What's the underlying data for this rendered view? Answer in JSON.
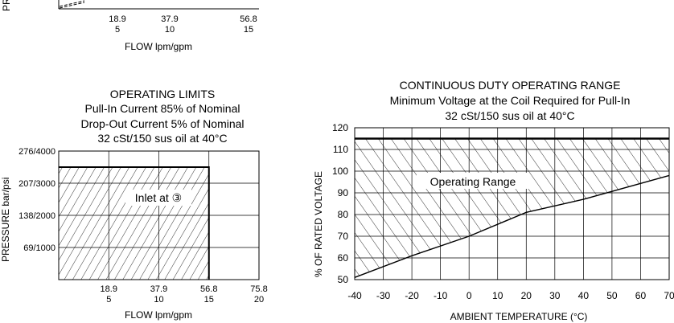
{
  "chart_data": [
    {
      "type": "line",
      "partial": true,
      "xlabel": "FLOW lpm/gpm",
      "ylabel": "PR",
      "x_ticks": [
        {
          "lpm": "18.9",
          "gpm": "5"
        },
        {
          "lpm": "37.9",
          "gpm": "10"
        },
        {
          "lpm": "56.8",
          "gpm": "15"
        }
      ]
    },
    {
      "type": "area",
      "title": "OPERATING LIMITS",
      "subtitle": [
        "Pull-In Current 85% of Nominal",
        "Drop-Out Current 5% of Nominal",
        "32 cSt/150 sus oil at 40°C"
      ],
      "xlabel": "FLOW lpm/gpm",
      "ylabel": "PRESSURE bar/psi",
      "xlim_gpm": [
        0,
        20
      ],
      "ylim_psi": [
        0,
        4000
      ],
      "x_ticks": [
        {
          "gpm": 5,
          "lpm_label": "18.9",
          "gpm_label": "5"
        },
        {
          "gpm": 10,
          "lpm_label": "37.9",
          "gpm_label": "10"
        },
        {
          "gpm": 15,
          "lpm_label": "56.8",
          "gpm_label": "15"
        },
        {
          "gpm": 20,
          "lpm_label": "75.8",
          "gpm_label": "20"
        }
      ],
      "y_ticks": [
        {
          "psi": 1000,
          "label": "69/1000"
        },
        {
          "psi": 2000,
          "label": "138/2000"
        },
        {
          "psi": 3000,
          "label": "207/3000"
        },
        {
          "psi": 4000,
          "label": "276/4000"
        }
      ],
      "region": {
        "max_flow_gpm": 15,
        "max_pressure_psi": 3500,
        "label": "Inlet at ③"
      },
      "grid": true
    },
    {
      "type": "area",
      "title": "CONTINUOUS DUTY OPERATING RANGE",
      "subtitle": [
        "Minimum Voltage at the Coil Required for Pull-In",
        "32 cSt/150 sus oil at 40°C"
      ],
      "xlabel": "AMBIENT TEMPERATURE (°C)",
      "ylabel": "% OF RATED VOLTAGE",
      "xlim": [
        -40,
        70
      ],
      "ylim": [
        50,
        120
      ],
      "x_ticks": [
        -40,
        -30,
        -20,
        -10,
        0,
        10,
        20,
        30,
        40,
        50,
        60,
        70
      ],
      "y_ticks": [
        50,
        60,
        70,
        80,
        90,
        100,
        110,
        120
      ],
      "upper_limit": 115,
      "min_voltage_curve": {
        "x": [
          -40,
          -20,
          0,
          20,
          40,
          70
        ],
        "y": [
          51,
          61,
          70,
          81,
          87,
          98
        ]
      },
      "region_label": "Operating Range",
      "grid": true
    }
  ]
}
